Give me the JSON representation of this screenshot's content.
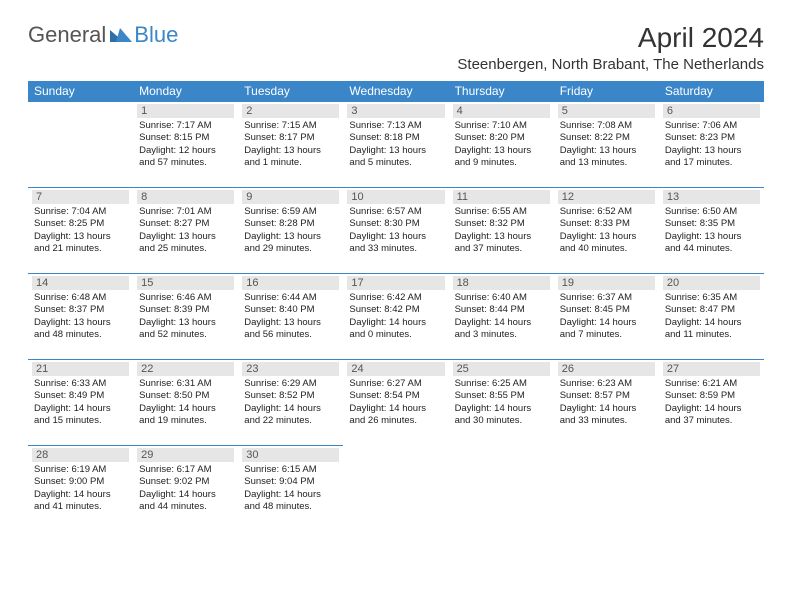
{
  "logo": {
    "part1": "General",
    "part2": "Blue"
  },
  "title": "April 2024",
  "location": "Steenbergen, North Brabant, The Netherlands",
  "colors": {
    "header_bg": "#3a86c8",
    "header_text": "#ffffff",
    "daynum_bg": "#e6e6e6",
    "text": "#222222",
    "border": "#3a86c8"
  },
  "day_headers": [
    "Sunday",
    "Monday",
    "Tuesday",
    "Wednesday",
    "Thursday",
    "Friday",
    "Saturday"
  ],
  "weeks": [
    [
      null,
      {
        "n": "1",
        "sr": "7:17 AM",
        "ss": "8:15 PM",
        "dl": "12 hours and 57 minutes."
      },
      {
        "n": "2",
        "sr": "7:15 AM",
        "ss": "8:17 PM",
        "dl": "13 hours and 1 minute."
      },
      {
        "n": "3",
        "sr": "7:13 AM",
        "ss": "8:18 PM",
        "dl": "13 hours and 5 minutes."
      },
      {
        "n": "4",
        "sr": "7:10 AM",
        "ss": "8:20 PM",
        "dl": "13 hours and 9 minutes."
      },
      {
        "n": "5",
        "sr": "7:08 AM",
        "ss": "8:22 PM",
        "dl": "13 hours and 13 minutes."
      },
      {
        "n": "6",
        "sr": "7:06 AM",
        "ss": "8:23 PM",
        "dl": "13 hours and 17 minutes."
      }
    ],
    [
      {
        "n": "7",
        "sr": "7:04 AM",
        "ss": "8:25 PM",
        "dl": "13 hours and 21 minutes."
      },
      {
        "n": "8",
        "sr": "7:01 AM",
        "ss": "8:27 PM",
        "dl": "13 hours and 25 minutes."
      },
      {
        "n": "9",
        "sr": "6:59 AM",
        "ss": "8:28 PM",
        "dl": "13 hours and 29 minutes."
      },
      {
        "n": "10",
        "sr": "6:57 AM",
        "ss": "8:30 PM",
        "dl": "13 hours and 33 minutes."
      },
      {
        "n": "11",
        "sr": "6:55 AM",
        "ss": "8:32 PM",
        "dl": "13 hours and 37 minutes."
      },
      {
        "n": "12",
        "sr": "6:52 AM",
        "ss": "8:33 PM",
        "dl": "13 hours and 40 minutes."
      },
      {
        "n": "13",
        "sr": "6:50 AM",
        "ss": "8:35 PM",
        "dl": "13 hours and 44 minutes."
      }
    ],
    [
      {
        "n": "14",
        "sr": "6:48 AM",
        "ss": "8:37 PM",
        "dl": "13 hours and 48 minutes."
      },
      {
        "n": "15",
        "sr": "6:46 AM",
        "ss": "8:39 PM",
        "dl": "13 hours and 52 minutes."
      },
      {
        "n": "16",
        "sr": "6:44 AM",
        "ss": "8:40 PM",
        "dl": "13 hours and 56 minutes."
      },
      {
        "n": "17",
        "sr": "6:42 AM",
        "ss": "8:42 PM",
        "dl": "14 hours and 0 minutes."
      },
      {
        "n": "18",
        "sr": "6:40 AM",
        "ss": "8:44 PM",
        "dl": "14 hours and 3 minutes."
      },
      {
        "n": "19",
        "sr": "6:37 AM",
        "ss": "8:45 PM",
        "dl": "14 hours and 7 minutes."
      },
      {
        "n": "20",
        "sr": "6:35 AM",
        "ss": "8:47 PM",
        "dl": "14 hours and 11 minutes."
      }
    ],
    [
      {
        "n": "21",
        "sr": "6:33 AM",
        "ss": "8:49 PM",
        "dl": "14 hours and 15 minutes."
      },
      {
        "n": "22",
        "sr": "6:31 AM",
        "ss": "8:50 PM",
        "dl": "14 hours and 19 minutes."
      },
      {
        "n": "23",
        "sr": "6:29 AM",
        "ss": "8:52 PM",
        "dl": "14 hours and 22 minutes."
      },
      {
        "n": "24",
        "sr": "6:27 AM",
        "ss": "8:54 PM",
        "dl": "14 hours and 26 minutes."
      },
      {
        "n": "25",
        "sr": "6:25 AM",
        "ss": "8:55 PM",
        "dl": "14 hours and 30 minutes."
      },
      {
        "n": "26",
        "sr": "6:23 AM",
        "ss": "8:57 PM",
        "dl": "14 hours and 33 minutes."
      },
      {
        "n": "27",
        "sr": "6:21 AM",
        "ss": "8:59 PM",
        "dl": "14 hours and 37 minutes."
      }
    ],
    [
      {
        "n": "28",
        "sr": "6:19 AM",
        "ss": "9:00 PM",
        "dl": "14 hours and 41 minutes."
      },
      {
        "n": "29",
        "sr": "6:17 AM",
        "ss": "9:02 PM",
        "dl": "14 hours and 44 minutes."
      },
      {
        "n": "30",
        "sr": "6:15 AM",
        "ss": "9:04 PM",
        "dl": "14 hours and 48 minutes."
      },
      null,
      null,
      null,
      null
    ]
  ]
}
